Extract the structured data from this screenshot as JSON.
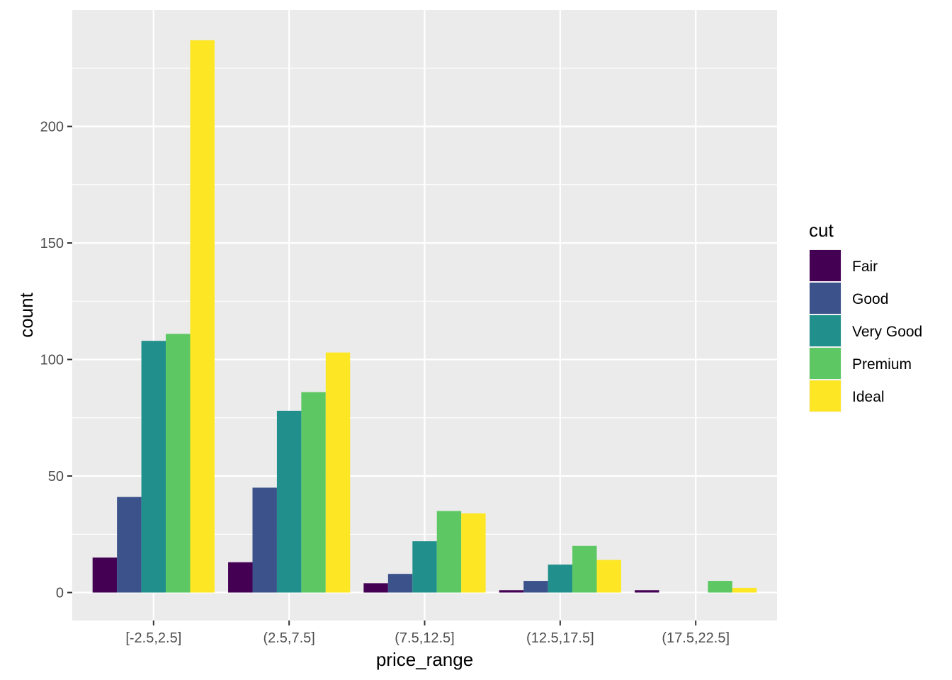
{
  "chart_data": {
    "type": "bar",
    "categories": [
      "[-2.5,2.5]",
      "(2.5,7.5]",
      "(7.5,12.5]",
      "(12.5,17.5]",
      "(17.5,22.5]"
    ],
    "series": [
      {
        "name": "Fair",
        "color": "#440154",
        "values": [
          15,
          13,
          4,
          1,
          1
        ]
      },
      {
        "name": "Good",
        "color": "#3B528B",
        "values": [
          41,
          45,
          8,
          5,
          0
        ]
      },
      {
        "name": "Very Good",
        "color": "#21908C",
        "values": [
          108,
          78,
          22,
          12,
          0
        ]
      },
      {
        "name": "Premium",
        "color": "#5DC863",
        "values": [
          111,
          86,
          35,
          20,
          5
        ]
      },
      {
        "name": "Ideal",
        "color": "#FDE725",
        "values": [
          237,
          103,
          34,
          14,
          2
        ]
      }
    ],
    "xlabel": "price_range",
    "ylabel": "count",
    "ylim": [
      -12,
      250
    ],
    "yticks": [
      0,
      50,
      100,
      150,
      200
    ],
    "legend_title": "cut",
    "legend_position": "right",
    "grid": true,
    "panel_background": "#EBEBEB"
  }
}
